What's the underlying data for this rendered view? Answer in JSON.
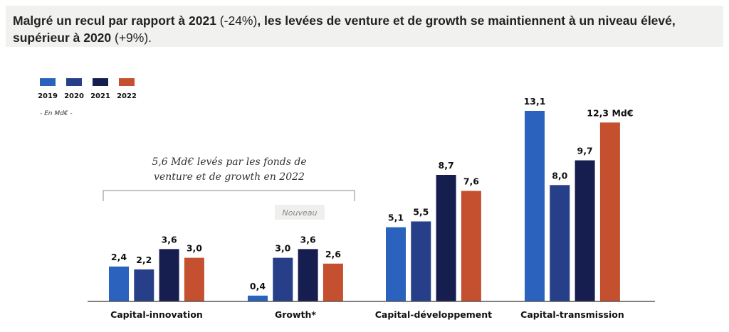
{
  "header": {
    "title_bold_1": "Malgré un recul par rapport à 2021",
    "title_normal_1": " (-24%)",
    "title_bold_2": ", les levées de venture et de growth se maintiennent à un niveau élevé, supérieur à 2020",
    "title_normal_2": " (+9%)."
  },
  "chart_data": {
    "type": "bar",
    "unit_label": "- En Md€ -",
    "categories": [
      "Capital-innovation",
      "Growth*",
      "Capital-développement",
      "Capital-transmission"
    ],
    "series": [
      {
        "name": "2019",
        "color": "#2a62bd",
        "values": [
          2.4,
          0.4,
          5.1,
          13.1
        ],
        "labels": [
          "2,4",
          "0,4",
          "5,1",
          "13,1"
        ]
      },
      {
        "name": "2020",
        "color": "#263f88",
        "values": [
          2.2,
          3.0,
          5.5,
          8.0
        ],
        "labels": [
          "2,2",
          "3,0",
          "5,5",
          "8,0"
        ]
      },
      {
        "name": "2021",
        "color": "#161d4f",
        "values": [
          3.6,
          3.6,
          8.7,
          9.7
        ],
        "labels": [
          "3,6",
          "3,6",
          "8,7",
          "9,7"
        ]
      },
      {
        "name": "2022",
        "color": "#c4502f",
        "values": [
          3.0,
          2.6,
          7.6,
          12.3
        ],
        "labels": [
          "3,0",
          "2,6",
          "7,6",
          "12,3 Md€"
        ]
      }
    ],
    "annotations": {
      "bracket_line_1": "5,6 Md€ levés par les fonds de",
      "bracket_line_2": "venture et de growth en 2022",
      "badge": "Nouveau"
    },
    "legend_placement": "top-left",
    "grid": false
  }
}
